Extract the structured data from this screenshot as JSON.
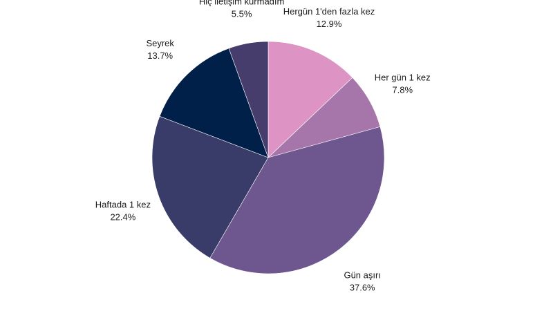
{
  "chart_data": {
    "type": "pie",
    "title": "",
    "start": "top",
    "direction": "clockwise",
    "slices": [
      {
        "label": "Hergün 1'den fazla kez",
        "value": 12.9,
        "value_label": "12.9%",
        "color": "#dd94c5"
      },
      {
        "label": "Her gün 1 kez",
        "value": 7.8,
        "value_label": "7.8%",
        "color": "#a676ab"
      },
      {
        "label": "Gün aşırı",
        "value": 37.6,
        "value_label": "37.6%",
        "color": "#6e578e"
      },
      {
        "label": "Haftada 1 kez",
        "value": 22.4,
        "value_label": "22.4%",
        "color": "#393b68"
      },
      {
        "label": "Seyrek",
        "value": 13.7,
        "value_label": "13.7%",
        "color": "#00204a"
      },
      {
        "label": "Hiç iletişim kurmadım",
        "value": 5.5,
        "value_label": "5.5%",
        "color": "#473d6c"
      }
    ]
  }
}
